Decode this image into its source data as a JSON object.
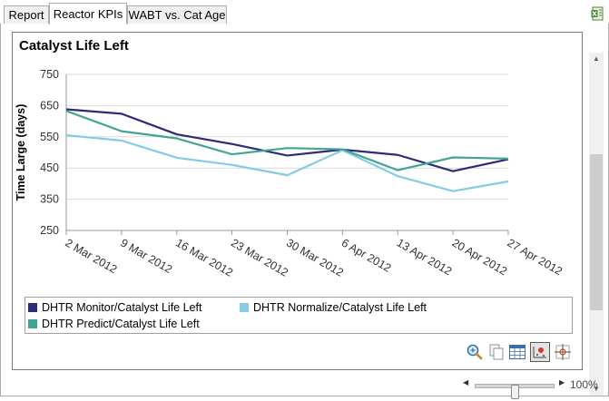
{
  "tabs": [
    {
      "label": "Report",
      "active": false
    },
    {
      "label": "Reactor KPIs",
      "active": true
    },
    {
      "label": "WABT vs. Cat Age",
      "active": false
    }
  ],
  "toolbar_icons": [
    "zoom-icon",
    "copy-icon",
    "table-icon",
    "chart-select-icon",
    "crosshair-icon"
  ],
  "zoom": {
    "percent": "100%",
    "level": 0.5
  },
  "scroll": {
    "position": 0.55
  },
  "colors": {
    "monitor": "#2e2a7a",
    "normalize": "#86cbe6",
    "predict": "#43a591"
  },
  "chart_data": {
    "type": "line",
    "title": "Catalyst Life Left",
    "xlabel": "",
    "ylabel": "Time Large (days)",
    "ylim": [
      250,
      750
    ],
    "yticks": [
      250,
      350,
      450,
      550,
      650,
      750
    ],
    "categories": [
      "2 Mar 2012",
      "9 Mar 2012",
      "16 Mar 2012",
      "23 Mar 2012",
      "30 Mar 2012",
      "6 Apr 2012",
      "13 Apr 2012",
      "20 Apr 2012",
      "27 Apr 2012"
    ],
    "grid": true,
    "legend_position": "bottom",
    "series": [
      {
        "name": "DHTR Monitor/Catalyst Life Left",
        "color": "#2e2a7a",
        "values": [
          638,
          624,
          558,
          527,
          490,
          509,
          492,
          440,
          478
        ]
      },
      {
        "name": "DHTR Normalize/Catalyst Life Left",
        "color": "#86cbe6",
        "values": [
          555,
          538,
          483,
          460,
          427,
          507,
          424,
          376,
          407
        ]
      },
      {
        "name": "DHTR Predict/Catalyst Life Left",
        "color": "#43a591",
        "values": [
          633,
          568,
          545,
          494,
          514,
          510,
          443,
          484,
          480
        ]
      }
    ]
  }
}
